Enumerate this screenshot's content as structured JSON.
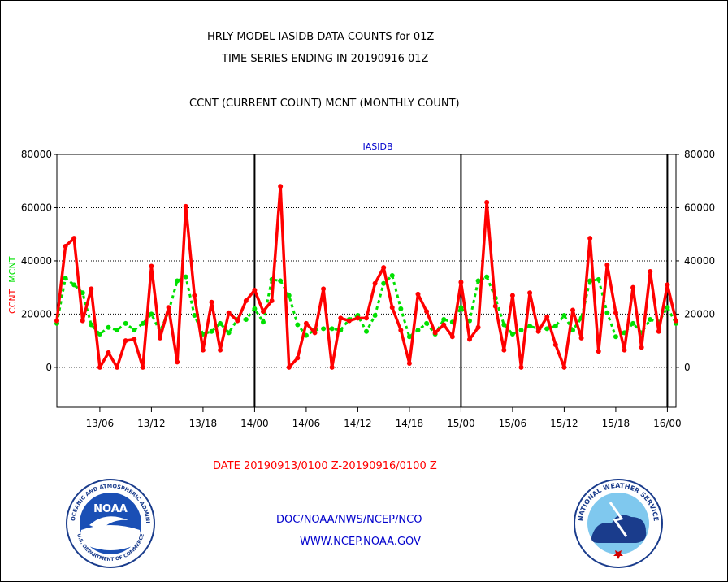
{
  "titles": {
    "line1": "HRLY MODEL IASIDB DATA COUNTS for 01Z",
    "line2": "TIME SERIES ENDING IN 20190916 01Z",
    "line3": "CCNT (CURRENT COUNT) MCNT (MONTHLY COUNT)"
  },
  "date_range": "DATE 20190913/0100 Z-20190916/0100 Z",
  "footer": {
    "org": "DOC/NOAA/NWS/NCEP/NCO",
    "url": "WWW.NCEP.NOAA.GOV"
  },
  "logos": {
    "left": {
      "name": "NOAA",
      "ring_text": "NATIONAL OCEANIC AND ATMOSPHERIC ADMINISTRATION",
      "bottom_text": "U.S. DEPARTMENT OF COMMERCE"
    },
    "right": {
      "ring_text": "NATIONAL WEATHER SERVICE"
    }
  },
  "colors": {
    "ccnt": "#ff0000",
    "mcnt": "#00e000",
    "label_blue": "#0000cc",
    "date_red": "#ff0000"
  },
  "chart_data": {
    "type": "line",
    "title": "IASIDB",
    "ylabel_left": [
      "CCNT",
      "MCNT"
    ],
    "ylim": [
      -15000,
      80000
    ],
    "yticks": [
      0,
      20000,
      40000,
      60000,
      80000
    ],
    "x_start": "13/01",
    "x_end": "16/01",
    "x_tick_labels": [
      "13/06",
      "13/12",
      "13/18",
      "14/00",
      "14/06",
      "14/12",
      "14/18",
      "15/00",
      "15/06",
      "15/12",
      "15/18",
      "16/00"
    ],
    "x_tick_hours": [
      6,
      12,
      18,
      24,
      30,
      36,
      42,
      48,
      54,
      60,
      66,
      72
    ],
    "day_boundaries_hours": [
      24,
      48,
      72
    ],
    "grid": "horizontal",
    "hours": [
      1,
      2,
      3,
      4,
      5,
      6,
      7,
      8,
      9,
      10,
      11,
      12,
      13,
      14,
      15,
      16,
      17,
      18,
      19,
      20,
      21,
      22,
      23,
      24,
      25,
      26,
      27,
      28,
      29,
      30,
      31,
      32,
      33,
      34,
      35,
      36,
      37,
      38,
      39,
      40,
      41,
      42,
      43,
      44,
      45,
      46,
      47,
      48,
      49,
      50,
      51,
      52,
      53,
      54,
      55,
      56,
      57,
      58,
      59,
      60,
      61,
      62,
      63,
      64,
      65,
      66,
      67,
      68,
      69,
      70,
      71,
      72,
      73
    ],
    "series": [
      {
        "name": "CCNT",
        "values": [
          17500,
          45500,
          48500,
          17500,
          29500,
          0,
          5500,
          0,
          10000,
          10500,
          0,
          38000,
          11000,
          22500,
          2000,
          60500,
          27000,
          6500,
          24500,
          6500,
          20500,
          17500,
          25000,
          29000,
          21000,
          25000,
          68000,
          0,
          3500,
          16500,
          13000,
          29500,
          0,
          18500,
          17500,
          18500,
          18500,
          31500,
          37500,
          22500,
          14000,
          1500,
          27500,
          21000,
          13000,
          16000,
          11500,
          32000,
          10500,
          15000,
          62000,
          23000,
          6500,
          27000,
          0,
          28000,
          13500,
          19000,
          8500,
          0,
          21500,
          11000,
          48500,
          6000,
          38500,
          20500,
          6500,
          30000,
          7500,
          36000,
          13500,
          31000,
          17500
        ]
      },
      {
        "name": "MCNT",
        "values": [
          16500,
          33500,
          31000,
          28000,
          16000,
          12500,
          15000,
          14000,
          16500,
          14000,
          16500,
          20000,
          13500,
          21000,
          32500,
          34000,
          19500,
          12500,
          13500,
          16500,
          13000,
          18000,
          18000,
          22000,
          17000,
          33000,
          32500,
          27000,
          16000,
          12000,
          14000,
          14500,
          14500,
          14000,
          18000,
          19500,
          13500,
          19500,
          31500,
          34500,
          22000,
          11500,
          14000,
          16500,
          12500,
          18000,
          17000,
          22500,
          17500,
          32500,
          34000,
          26000,
          16000,
          12500,
          14000,
          15500,
          14500,
          14500,
          15500,
          19500,
          14000,
          18500,
          32500,
          33000,
          20500,
          11500,
          13000,
          16500,
          13000,
          18000,
          17000,
          22500,
          16500
        ]
      }
    ]
  }
}
